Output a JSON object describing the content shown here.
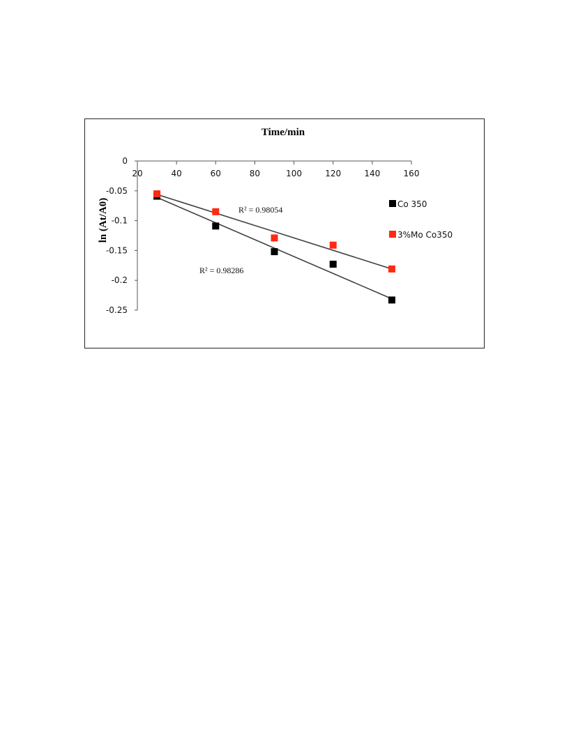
{
  "chart_data": {
    "type": "scatter",
    "title": "Time/min",
    "xlabel": "",
    "ylabel": "ln (At/A0)",
    "xlim": [
      20,
      160
    ],
    "ylim": [
      -0.25,
      0
    ],
    "xticks": [
      20,
      40,
      60,
      80,
      100,
      120,
      140,
      160
    ],
    "xtick_labels": [
      "20",
      "40",
      "60",
      "80",
      "100",
      "120",
      "140",
      "160"
    ],
    "yticks": [
      0,
      -0.05,
      -0.1,
      -0.15,
      -0.2,
      -0.25
    ],
    "ytick_labels": [
      "0",
      "-0.05",
      "-0.1",
      "-0.15",
      "-0.2",
      "-0.25"
    ],
    "grid": false,
    "legend_position": "right",
    "series": [
      {
        "name": "Co 350",
        "color": "#000000",
        "marker": "square",
        "x": [
          30,
          60,
          90,
          120,
          150
        ],
        "y": [
          -0.059,
          -0.109,
          -0.152,
          -0.173,
          -0.233
        ],
        "trendline": {
          "type": "linear",
          "color": "#404040",
          "x_range": [
            30,
            150
          ],
          "y_range": [
            -0.061,
            -0.231
          ]
        },
        "r2_label": "R² = 0.98286"
      },
      {
        "name": "3%Mo Co350",
        "color": "#ff2a12",
        "marker": "square",
        "x": [
          30,
          60,
          90,
          120,
          150
        ],
        "y": [
          -0.055,
          -0.085,
          -0.129,
          -0.141,
          -0.181
        ],
        "trendline": {
          "type": "linear",
          "color": "#404040",
          "x_range": [
            30,
            150
          ],
          "y_range": [
            -0.056,
            -0.181
          ]
        },
        "r2_label": "R² = 0.98054"
      }
    ]
  }
}
